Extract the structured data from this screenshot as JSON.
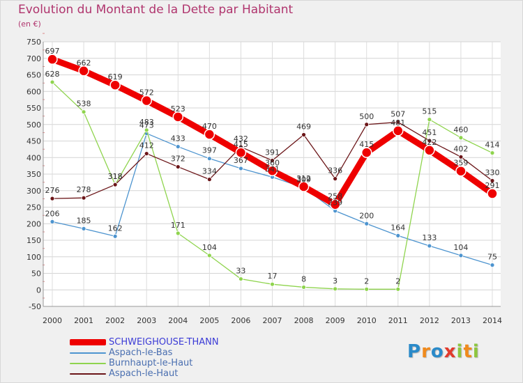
{
  "title": "Evolution du Montant de la Dette par Habitant",
  "unit": "(en €)",
  "logo": {
    "text": "Proxiti",
    "letters": [
      "P",
      "r",
      "o",
      "x",
      "i",
      "t",
      "i"
    ],
    "colors": [
      "#2a8ac9",
      "#f08a1c",
      "#2a8ac9",
      "#e23a2c",
      "#8dc63f",
      "#f08a1c",
      "#8dc63f"
    ]
  },
  "chart_data": {
    "type": "line",
    "x": [
      2000,
      2001,
      2002,
      2003,
      2004,
      2005,
      2006,
      2007,
      2008,
      2009,
      2010,
      2011,
      2012,
      2013,
      2014
    ],
    "ylim": [
      -50,
      750
    ],
    "yticks": [
      -50,
      0,
      50,
      100,
      150,
      200,
      250,
      300,
      350,
      400,
      450,
      500,
      550,
      600,
      650,
      700,
      750
    ],
    "grid": true,
    "legend_position": "bottom-left",
    "series": [
      {
        "name": "SCHWEIGHOUSE-THANN",
        "color": "#ee0000",
        "stroke": 9,
        "marker": 7,
        "values": [
          697,
          662,
          619,
          572,
          523,
          470,
          415,
          360,
          312,
          258,
          415,
          481,
          422,
          359,
          291
        ],
        "labels": [
          "697",
          "662",
          "619",
          "572",
          "523",
          "470",
          "415",
          "360",
          "312",
          "258",
          "415",
          "481",
          "422",
          "359",
          "291"
        ]
      },
      {
        "name": "Aspach-le-Bas",
        "color": "#4d94cf",
        "stroke": 1.3,
        "marker": 3,
        "values": [
          206,
          185,
          162,
          473,
          433,
          397,
          367,
          341,
          309,
          239,
          200,
          164,
          133,
          104,
          75
        ],
        "labels": [
          "206",
          "185",
          "162",
          "473",
          "433",
          "397",
          "367",
          "341",
          "309",
          "239",
          "200",
          "164",
          "133",
          "104",
          "75"
        ]
      },
      {
        "name": "Burnhaupt-le-Haut",
        "color": "#8fd44e",
        "stroke": 1.3,
        "marker": 3,
        "values": [
          628,
          538,
          318,
          483,
          171,
          104,
          33,
          17,
          8,
          3,
          2,
          2,
          515,
          460,
          414
        ],
        "labels": [
          "628",
          "538",
          "318",
          "483",
          "171",
          "104",
          "33",
          "17",
          "8",
          "3",
          "2",
          "2",
          "515",
          "460",
          "414"
        ]
      },
      {
        "name": "Aspach-le-Haut",
        "color": "#6b1518",
        "stroke": 1.3,
        "marker": 3,
        "values": [
          276,
          278,
          318,
          412,
          372,
          334,
          432,
          391,
          469,
          336,
          500,
          507,
          451,
          402,
          330
        ],
        "labels": [
          "276",
          "278",
          "318",
          "412",
          "372",
          "334",
          "432",
          "391",
          "469",
          "336",
          "500",
          "507",
          "451",
          "402",
          "330"
        ]
      }
    ]
  }
}
